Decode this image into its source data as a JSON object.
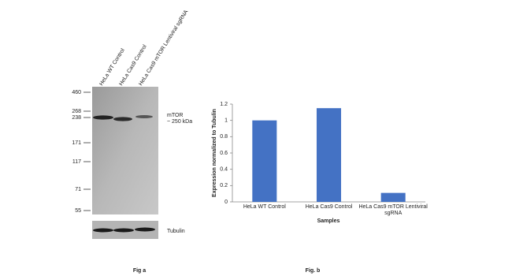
{
  "blot": {
    "lanes": [
      "HeLa WT Control",
      "HeLa Cas9 Control",
      "HeLa Cas9 mTOR Lentiviral sgRNA"
    ],
    "markers": [
      460,
      268,
      238,
      171,
      117,
      71,
      55
    ],
    "band_label": [
      "mTOR",
      "~ 250  kDa"
    ],
    "loading_label": "Tubulin",
    "caption": "Fig a"
  },
  "chart_data": {
    "type": "bar",
    "categories": [
      "HeLa WT Control",
      "HeLa Cas9 Control",
      "HeLa Cas9 mTOR Lentiviral sgRNA"
    ],
    "values": [
      1.0,
      1.15,
      0.11
    ],
    "color": "#4472c4",
    "ylim": [
      0,
      1.2
    ],
    "yticks": [
      0,
      0.2,
      0.4,
      0.6,
      0.8,
      1,
      1.2
    ],
    "x_label": "Samples",
    "y_label": "Expression  normalized to Tubulin",
    "caption": "Fig. b"
  }
}
